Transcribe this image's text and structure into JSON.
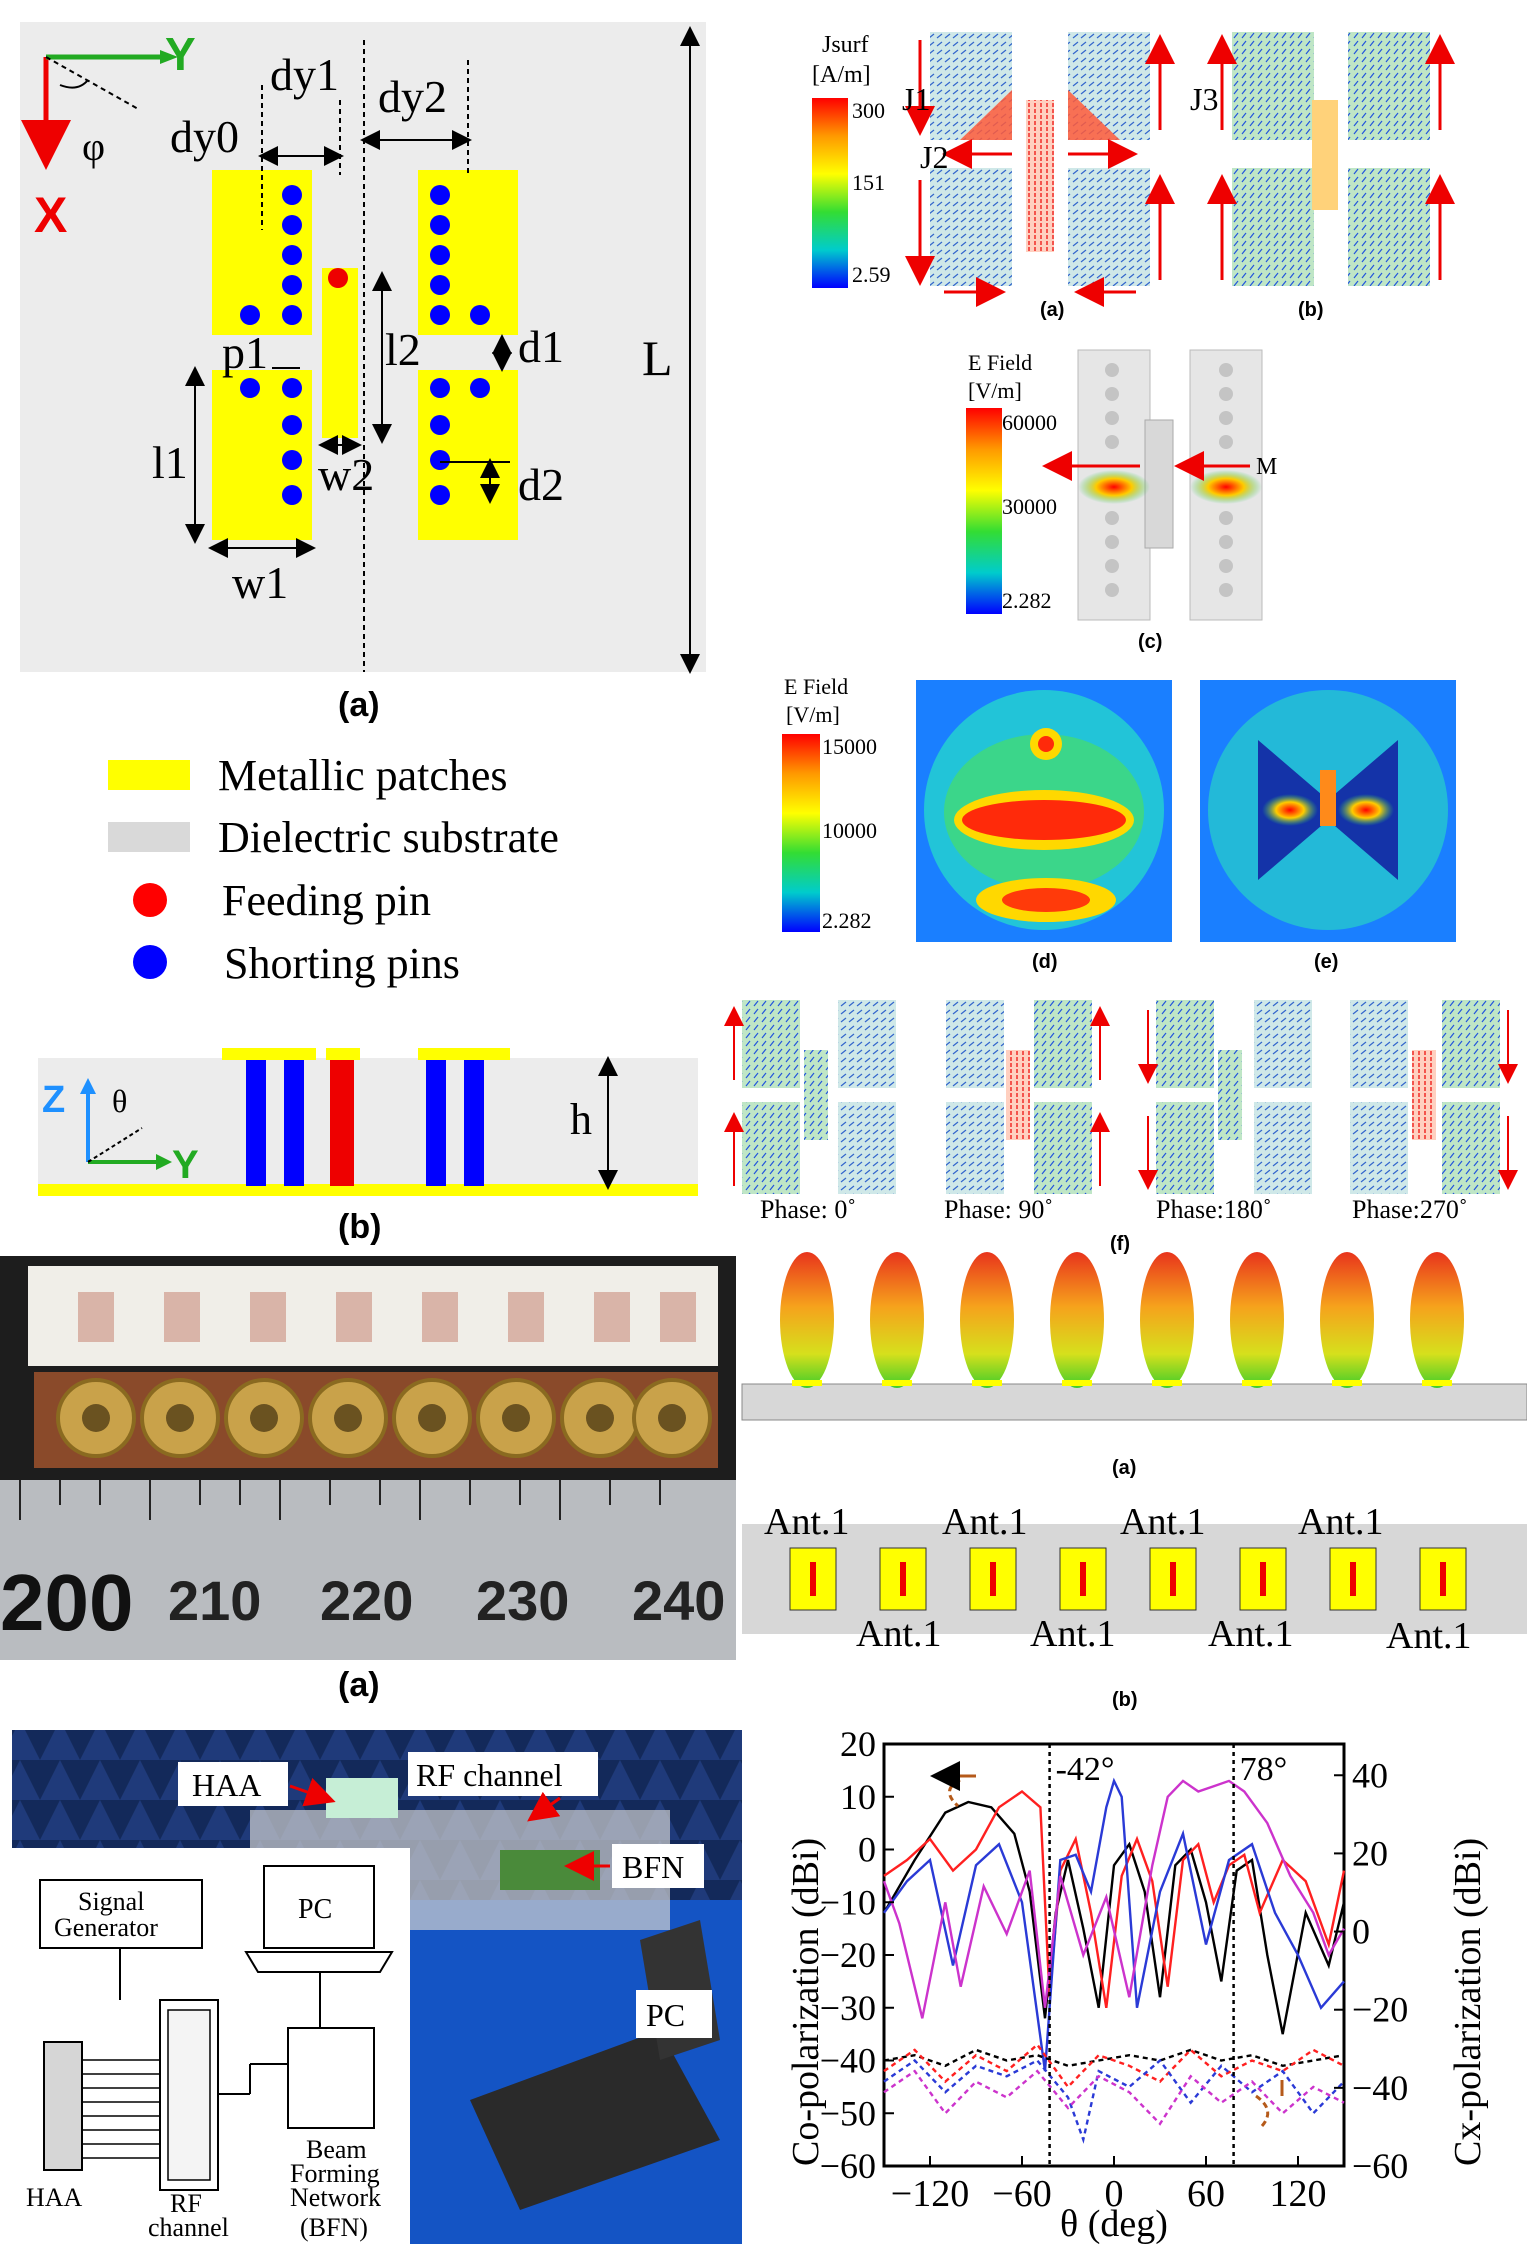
{
  "fig_geom": {
    "axis_x": "X",
    "axis_y": "Y",
    "phi": "φ",
    "dy0": "dy0",
    "dy1": "dy1",
    "dy2": "dy2",
    "p1": "p1",
    "l1": "l1",
    "l2": "l2",
    "w1": "w1",
    "w2": "w2",
    "d1": "d1",
    "d2": "d2",
    "L": "L",
    "caption": "(a)"
  },
  "legend": {
    "metal": "Metallic patches",
    "dielectric": "Dielectric substrate",
    "feed": "Feeding pin",
    "short": "Shorting pins",
    "colors": {
      "metal": "#ffff00",
      "dielectric": "#d9d9d9",
      "feed": "#ff0000",
      "short": "#0000ff"
    }
  },
  "fig_side": {
    "axis_z": "Z",
    "theta": "θ",
    "axis_y": "Y",
    "h": "h",
    "caption": "(b)"
  },
  "fig_current": {
    "title": "Jsurf",
    "unit": "[A/m]",
    "ticks": [
      "300",
      "151",
      "2.59"
    ],
    "labels": [
      "J1",
      "J2",
      "J3"
    ],
    "caption_a": "(a)",
    "caption_b": "(b)"
  },
  "fig_efield_c": {
    "title": "E Field",
    "unit": "[V/m]",
    "ticks": [
      "60000",
      "30000",
      "2.282"
    ],
    "label": "M",
    "caption": "(c)"
  },
  "fig_efield_de": {
    "title": "E Field",
    "unit": "[V/m]",
    "ticks": [
      "15000",
      "10000",
      "2.282"
    ],
    "caption_d": "(d)",
    "caption_e": "(e)"
  },
  "fig_phase": {
    "labels": [
      "Phase: 0˚",
      "Phase: 90˚",
      "Phase:180˚",
      "Phase:270˚"
    ],
    "caption": "(f)"
  },
  "fig_photo": {
    "ruler": [
      "200",
      "210",
      "220",
      "230",
      "240"
    ],
    "caption": "(a)"
  },
  "fig_array": {
    "caption_a": "(a)",
    "caption_b": "(b)",
    "ant_label": "Ant.1"
  },
  "fig_setup": {
    "photo_labels": {
      "haa": "HAA",
      "rf": "RF channel",
      "bfn": "BFN",
      "pc": "PC"
    },
    "diagram": {
      "signal_gen_1": "Signal",
      "signal_gen_2": "Generator",
      "pc": "PC",
      "haa": "HAA",
      "rf_1": "RF",
      "rf_2": "channel",
      "bfn_1": "Beam",
      "bfn_2": "Forming",
      "bfn_3": "Network",
      "bfn_4": "(BFN)"
    }
  },
  "chart_data": {
    "type": "line",
    "xlabel": "θ (deg)",
    "ylabel": "Co-polarization (dBi)",
    "y2label": "Cx-polarization (dBi)",
    "xlim": [
      -150,
      150
    ],
    "ylim": [
      -60,
      20
    ],
    "y2lim": [
      -60,
      48
    ],
    "xticks": [
      -120,
      -60,
      0,
      60,
      120
    ],
    "yticks": [
      20,
      10,
      0,
      -10,
      -20,
      -30,
      -40,
      -50,
      -60
    ],
    "y2ticks": [
      40,
      20,
      0,
      -20,
      -40,
      -60
    ],
    "markers": [
      {
        "x": -42,
        "label": "-42°"
      },
      {
        "x": 78,
        "label": "78°"
      }
    ],
    "series": [
      {
        "color": "#000000",
        "axis": "left",
        "style": "solid",
        "x": [
          -150,
          -130,
          -110,
          -95,
          -80,
          -65,
          -55,
          -45,
          -38,
          -30,
          -20,
          -10,
          0,
          10,
          20,
          30,
          40,
          50,
          60,
          70,
          80,
          90,
          100,
          110,
          125,
          140,
          150
        ],
        "y": [
          -12,
          -2,
          7,
          9,
          8,
          3,
          -8,
          -32,
          -12,
          -2,
          -15,
          -30,
          -3,
          1,
          -8,
          -28,
          -3,
          0,
          -10,
          -25,
          -4,
          -2,
          -20,
          -35,
          -12,
          -22,
          -10
        ]
      },
      {
        "color": "#ff2020",
        "axis": "left",
        "style": "solid",
        "x": [
          -150,
          -135,
          -120,
          -105,
          -90,
          -75,
          -60,
          -48,
          -42,
          -35,
          -25,
          -15,
          -5,
          5,
          15,
          25,
          35,
          45,
          55,
          65,
          75,
          85,
          95,
          110,
          125,
          140,
          150
        ],
        "y": [
          -5,
          -2,
          2,
          -4,
          0,
          8,
          11,
          8,
          -28,
          -4,
          2,
          -12,
          -30,
          -5,
          2,
          -6,
          -26,
          -2,
          1,
          -10,
          -3,
          -1,
          -12,
          -2,
          -6,
          -18,
          -4
        ]
      },
      {
        "color": "#2a3ad6",
        "axis": "left",
        "style": "solid",
        "x": [
          -150,
          -135,
          -120,
          -105,
          -90,
          -75,
          -60,
          -45,
          -35,
          -25,
          -15,
          -5,
          0,
          5,
          15,
          30,
          45,
          60,
          75,
          90,
          105,
          120,
          135,
          150
        ],
        "y": [
          -12,
          -6,
          -2,
          -22,
          -3,
          1,
          -10,
          -42,
          -2,
          -1,
          -8,
          8,
          13,
          10,
          -30,
          -8,
          3,
          -18,
          -2,
          1,
          -12,
          -20,
          -30,
          -25
        ]
      },
      {
        "color": "#cc33cc",
        "axis": "left",
        "style": "solid",
        "x": [
          -150,
          -140,
          -125,
          -110,
          -100,
          -85,
          -70,
          -55,
          -45,
          -35,
          -20,
          -5,
          10,
          25,
          35,
          45,
          55,
          65,
          75,
          85,
          100,
          115,
          130,
          140,
          150
        ],
        "y": [
          -6,
          -14,
          -32,
          -10,
          -26,
          -7,
          -16,
          -4,
          -30,
          -5,
          -20,
          -9,
          -28,
          -3,
          10,
          13,
          11,
          12,
          13,
          11,
          5,
          -5,
          -12,
          -20,
          -15
        ]
      },
      {
        "color": "#000000",
        "axis": "left",
        "style": "dashed",
        "x": [
          -150,
          -130,
          -110,
          -90,
          -70,
          -50,
          -30,
          -10,
          10,
          30,
          50,
          70,
          90,
          110,
          130,
          150
        ],
        "y": [
          -40,
          -39,
          -41,
          -38,
          -40,
          -39,
          -41,
          -40,
          -39,
          -40,
          -38,
          -40,
          -39,
          -41,
          -40,
          -39
        ]
      },
      {
        "color": "#ff2020",
        "axis": "left",
        "style": "dashed",
        "x": [
          -150,
          -130,
          -110,
          -90,
          -70,
          -50,
          -30,
          -10,
          10,
          30,
          50,
          70,
          90,
          110,
          130,
          150
        ],
        "y": [
          -42,
          -38,
          -44,
          -39,
          -42,
          -37,
          -45,
          -39,
          -41,
          -44,
          -38,
          -43,
          -40,
          -42,
          -38,
          -41
        ]
      },
      {
        "color": "#2a3ad6",
        "axis": "left",
        "style": "dashed",
        "x": [
          -150,
          -130,
          -110,
          -90,
          -70,
          -50,
          -30,
          -20,
          -10,
          10,
          30,
          50,
          70,
          90,
          110,
          130,
          150
        ],
        "y": [
          -44,
          -40,
          -46,
          -41,
          -43,
          -40,
          -47,
          -55,
          -42,
          -45,
          -40,
          -48,
          -41,
          -46,
          -42,
          -50,
          -44
        ]
      },
      {
        "color": "#cc33cc",
        "axis": "left",
        "style": "dashed",
        "x": [
          -150,
          -130,
          -110,
          -90,
          -70,
          -50,
          -30,
          -10,
          10,
          30,
          50,
          70,
          90,
          110,
          130,
          150
        ],
        "y": [
          -46,
          -42,
          -50,
          -44,
          -47,
          -42,
          -49,
          -43,
          -46,
          -52,
          -43,
          -48,
          -44,
          -50,
          -45,
          -48
        ]
      }
    ]
  }
}
